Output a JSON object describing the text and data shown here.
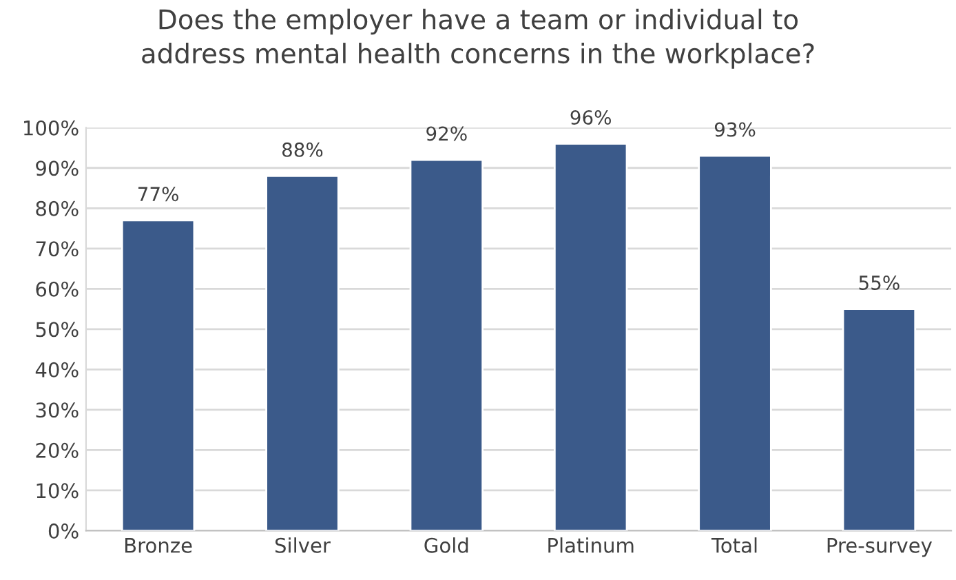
{
  "chart_data": {
    "type": "bar",
    "title": "Does the employer have a team or individual to\naddress mental health concerns in the workplace?",
    "categories": [
      "Bronze",
      "Silver",
      "Gold",
      "Platinum",
      "Total",
      "Pre-survey"
    ],
    "values": [
      77,
      88,
      92,
      96,
      93,
      55
    ],
    "value_labels": [
      "77%",
      "88%",
      "92%",
      "96%",
      "93%",
      "55%"
    ],
    "color": "#3b5a8a",
    "ylim": [
      0,
      100
    ],
    "yticks": [
      {
        "value": 0,
        "label": "0%"
      },
      {
        "value": 10,
        "label": "10%"
      },
      {
        "value": 20,
        "label": "20%"
      },
      {
        "value": 30,
        "label": "30%"
      },
      {
        "value": 40,
        "label": "40%"
      },
      {
        "value": 50,
        "label": "50%"
      },
      {
        "value": 60,
        "label": "60%"
      },
      {
        "value": 70,
        "label": "70%"
      },
      {
        "value": 80,
        "label": "80%"
      },
      {
        "value": 90,
        "label": "90%"
      },
      {
        "value": 100,
        "label": "100%"
      }
    ],
    "grid": "y"
  }
}
